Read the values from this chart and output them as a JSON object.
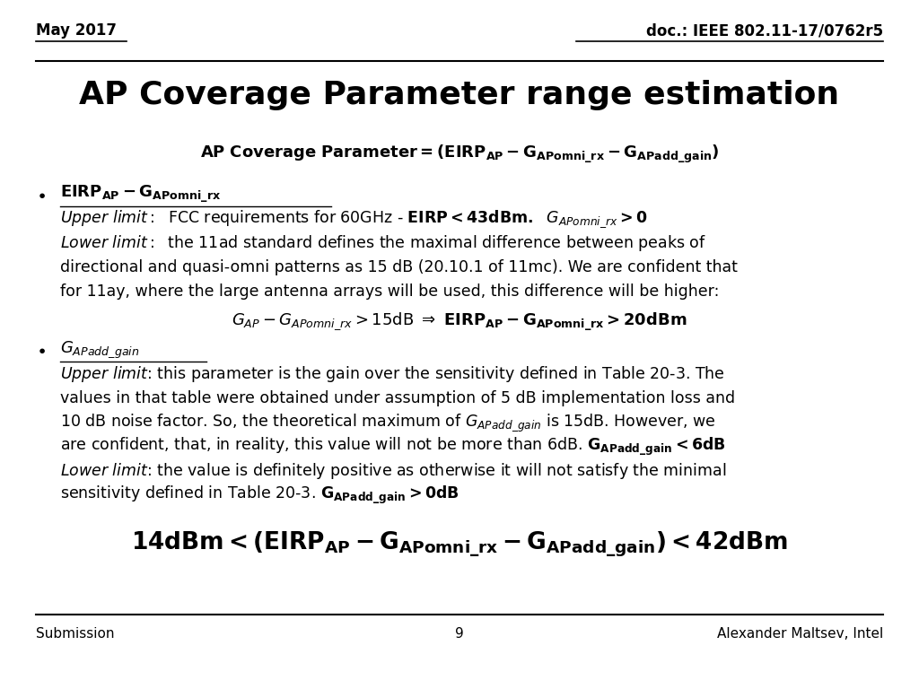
{
  "header_left": "May 2017",
  "header_right": "doc.: IEEE 802.11-17/0762r5",
  "title": "AP Coverage Parameter range estimation",
  "footer_left": "Submission",
  "footer_center": "9",
  "footer_right": "Alexander Maltsev, Intel",
  "bg_color": "#ffffff",
  "text_color": "#000000",
  "line_color": "#000000"
}
